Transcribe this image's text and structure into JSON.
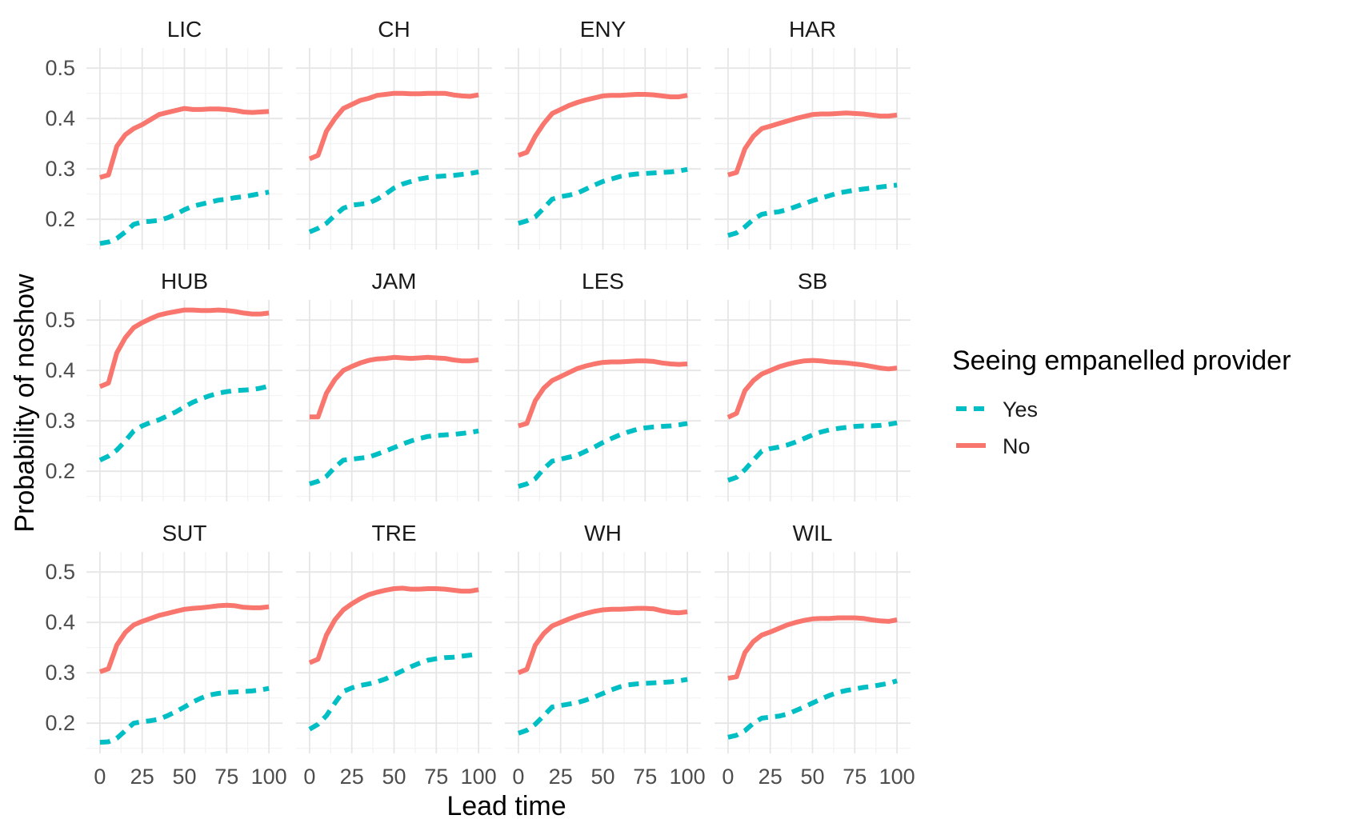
{
  "chart_data": {
    "type": "line",
    "facet_layout": "3x4 grid",
    "xlabel": "Lead time",
    "ylabel": "Probability of noshow",
    "xlim": [
      -8,
      108
    ],
    "ylim": [
      0.14,
      0.54
    ],
    "x_ticks": [
      0,
      25,
      50,
      75,
      100
    ],
    "x_tick_labels": [
      "0",
      "25",
      "50",
      "75",
      "100"
    ],
    "y_ticks": [
      0.2,
      0.3,
      0.4,
      0.5
    ],
    "y_tick_labels": [
      "0.2",
      "0.3",
      "0.4",
      "0.5"
    ],
    "grid": true,
    "legend": {
      "title": "Seeing empanelled provider",
      "position": "right",
      "entries": [
        {
          "label": "Yes",
          "color": "#00BFC4",
          "style": "dashed"
        },
        {
          "label": "No",
          "color": "#F8766D",
          "style": "solid"
        }
      ]
    },
    "x": [
      0,
      5,
      10,
      15,
      20,
      25,
      30,
      35,
      40,
      45,
      50,
      55,
      60,
      65,
      70,
      75,
      80,
      85,
      90,
      95,
      100
    ],
    "panels": [
      {
        "title": "LIC",
        "no": [
          0.283,
          0.288,
          0.345,
          0.368,
          0.38,
          0.388,
          0.398,
          0.408,
          0.412,
          0.416,
          0.42,
          0.418,
          0.418,
          0.419,
          0.419,
          0.418,
          0.416,
          0.413,
          0.412,
          0.413,
          0.414
        ],
        "yes": [
          0.152,
          0.155,
          0.162,
          0.175,
          0.19,
          0.195,
          0.196,
          0.198,
          0.203,
          0.21,
          0.219,
          0.226,
          0.23,
          0.234,
          0.238,
          0.24,
          0.243,
          0.245,
          0.248,
          0.251,
          0.254
        ]
      },
      {
        "title": "CH",
        "no": [
          0.32,
          0.327,
          0.375,
          0.4,
          0.42,
          0.428,
          0.436,
          0.44,
          0.446,
          0.448,
          0.45,
          0.45,
          0.449,
          0.449,
          0.45,
          0.45,
          0.45,
          0.447,
          0.445,
          0.444,
          0.447
        ],
        "yes": [
          0.175,
          0.182,
          0.192,
          0.208,
          0.222,
          0.228,
          0.23,
          0.232,
          0.24,
          0.25,
          0.262,
          0.27,
          0.275,
          0.28,
          0.283,
          0.285,
          0.286,
          0.287,
          0.289,
          0.291,
          0.294
        ]
      },
      {
        "title": "ENY",
        "no": [
          0.327,
          0.333,
          0.365,
          0.39,
          0.41,
          0.418,
          0.426,
          0.432,
          0.437,
          0.441,
          0.445,
          0.446,
          0.446,
          0.447,
          0.448,
          0.448,
          0.447,
          0.445,
          0.443,
          0.443,
          0.446
        ],
        "yes": [
          0.192,
          0.197,
          0.205,
          0.222,
          0.24,
          0.245,
          0.248,
          0.252,
          0.26,
          0.268,
          0.275,
          0.28,
          0.285,
          0.288,
          0.29,
          0.291,
          0.292,
          0.293,
          0.294,
          0.296,
          0.299
        ]
      },
      {
        "title": "HAR",
        "no": [
          0.288,
          0.293,
          0.34,
          0.365,
          0.38,
          0.385,
          0.39,
          0.395,
          0.4,
          0.404,
          0.408,
          0.409,
          0.409,
          0.41,
          0.411,
          0.41,
          0.409,
          0.407,
          0.405,
          0.405,
          0.407
        ],
        "yes": [
          0.168,
          0.173,
          0.185,
          0.2,
          0.21,
          0.213,
          0.215,
          0.219,
          0.225,
          0.231,
          0.237,
          0.242,
          0.247,
          0.252,
          0.255,
          0.258,
          0.26,
          0.262,
          0.264,
          0.266,
          0.268
        ]
      },
      {
        "title": "HUB",
        "no": [
          0.368,
          0.375,
          0.435,
          0.465,
          0.485,
          0.495,
          0.503,
          0.51,
          0.514,
          0.517,
          0.52,
          0.52,
          0.519,
          0.519,
          0.52,
          0.519,
          0.517,
          0.514,
          0.512,
          0.512,
          0.514
        ],
        "yes": [
          0.222,
          0.23,
          0.242,
          0.26,
          0.28,
          0.29,
          0.297,
          0.302,
          0.31,
          0.318,
          0.328,
          0.337,
          0.344,
          0.35,
          0.355,
          0.358,
          0.36,
          0.361,
          0.362,
          0.365,
          0.369
        ]
      },
      {
        "title": "JAM",
        "no": [
          0.308,
          0.308,
          0.355,
          0.382,
          0.4,
          0.408,
          0.415,
          0.42,
          0.423,
          0.424,
          0.426,
          0.425,
          0.424,
          0.425,
          0.426,
          0.425,
          0.424,
          0.421,
          0.419,
          0.419,
          0.421
        ],
        "yes": [
          0.175,
          0.18,
          0.19,
          0.208,
          0.222,
          0.224,
          0.226,
          0.228,
          0.234,
          0.24,
          0.247,
          0.254,
          0.26,
          0.265,
          0.269,
          0.271,
          0.272,
          0.273,
          0.275,
          0.277,
          0.28
        ]
      },
      {
        "title": "LES",
        "no": [
          0.29,
          0.295,
          0.34,
          0.365,
          0.38,
          0.388,
          0.396,
          0.404,
          0.409,
          0.413,
          0.416,
          0.417,
          0.417,
          0.418,
          0.419,
          0.419,
          0.418,
          0.415,
          0.413,
          0.412,
          0.413
        ],
        "yes": [
          0.17,
          0.175,
          0.185,
          0.205,
          0.22,
          0.224,
          0.228,
          0.232,
          0.24,
          0.248,
          0.257,
          0.265,
          0.272,
          0.278,
          0.283,
          0.286,
          0.288,
          0.289,
          0.29,
          0.292,
          0.295
        ]
      },
      {
        "title": "SB",
        "no": [
          0.307,
          0.315,
          0.36,
          0.38,
          0.393,
          0.4,
          0.407,
          0.412,
          0.416,
          0.419,
          0.42,
          0.419,
          0.417,
          0.416,
          0.415,
          0.413,
          0.411,
          0.408,
          0.405,
          0.403,
          0.405
        ],
        "yes": [
          0.182,
          0.188,
          0.203,
          0.222,
          0.24,
          0.245,
          0.248,
          0.252,
          0.258,
          0.265,
          0.272,
          0.278,
          0.282,
          0.285,
          0.287,
          0.289,
          0.29,
          0.29,
          0.291,
          0.293,
          0.296
        ]
      },
      {
        "title": "SUT",
        "no": [
          0.302,
          0.308,
          0.355,
          0.38,
          0.395,
          0.402,
          0.408,
          0.414,
          0.418,
          0.422,
          0.426,
          0.428,
          0.429,
          0.431,
          0.433,
          0.434,
          0.433,
          0.43,
          0.429,
          0.429,
          0.431
        ],
        "yes": [
          0.162,
          0.163,
          0.17,
          0.185,
          0.2,
          0.203,
          0.205,
          0.208,
          0.215,
          0.223,
          0.232,
          0.242,
          0.25,
          0.256,
          0.259,
          0.261,
          0.262,
          0.263,
          0.264,
          0.266,
          0.269
        ]
      },
      {
        "title": "TRE",
        "no": [
          0.32,
          0.327,
          0.375,
          0.405,
          0.425,
          0.437,
          0.447,
          0.455,
          0.46,
          0.464,
          0.467,
          0.468,
          0.466,
          0.466,
          0.467,
          0.467,
          0.466,
          0.464,
          0.462,
          0.462,
          0.465
        ],
        "yes": [
          0.188,
          0.198,
          0.215,
          0.24,
          0.263,
          0.27,
          0.275,
          0.278,
          0.282,
          0.288,
          0.296,
          0.304,
          0.312,
          0.319,
          0.325,
          0.328,
          0.33,
          0.331,
          0.333,
          0.335,
          0.338
        ]
      },
      {
        "title": "WH",
        "no": [
          0.3,
          0.307,
          0.355,
          0.378,
          0.393,
          0.4,
          0.407,
          0.413,
          0.418,
          0.422,
          0.425,
          0.426,
          0.426,
          0.427,
          0.428,
          0.428,
          0.427,
          0.423,
          0.42,
          0.419,
          0.421
        ],
        "yes": [
          0.18,
          0.186,
          0.198,
          0.215,
          0.232,
          0.235,
          0.238,
          0.241,
          0.246,
          0.252,
          0.259,
          0.266,
          0.272,
          0.276,
          0.278,
          0.279,
          0.28,
          0.281,
          0.282,
          0.284,
          0.287
        ]
      },
      {
        "title": "WIL",
        "no": [
          0.289,
          0.292,
          0.34,
          0.362,
          0.375,
          0.381,
          0.388,
          0.395,
          0.4,
          0.404,
          0.407,
          0.408,
          0.408,
          0.409,
          0.409,
          0.409,
          0.408,
          0.405,
          0.403,
          0.402,
          0.405
        ],
        "yes": [
          0.172,
          0.176,
          0.185,
          0.2,
          0.21,
          0.212,
          0.214,
          0.218,
          0.225,
          0.232,
          0.24,
          0.248,
          0.255,
          0.261,
          0.265,
          0.268,
          0.271,
          0.273,
          0.276,
          0.279,
          0.284
        ]
      }
    ]
  }
}
